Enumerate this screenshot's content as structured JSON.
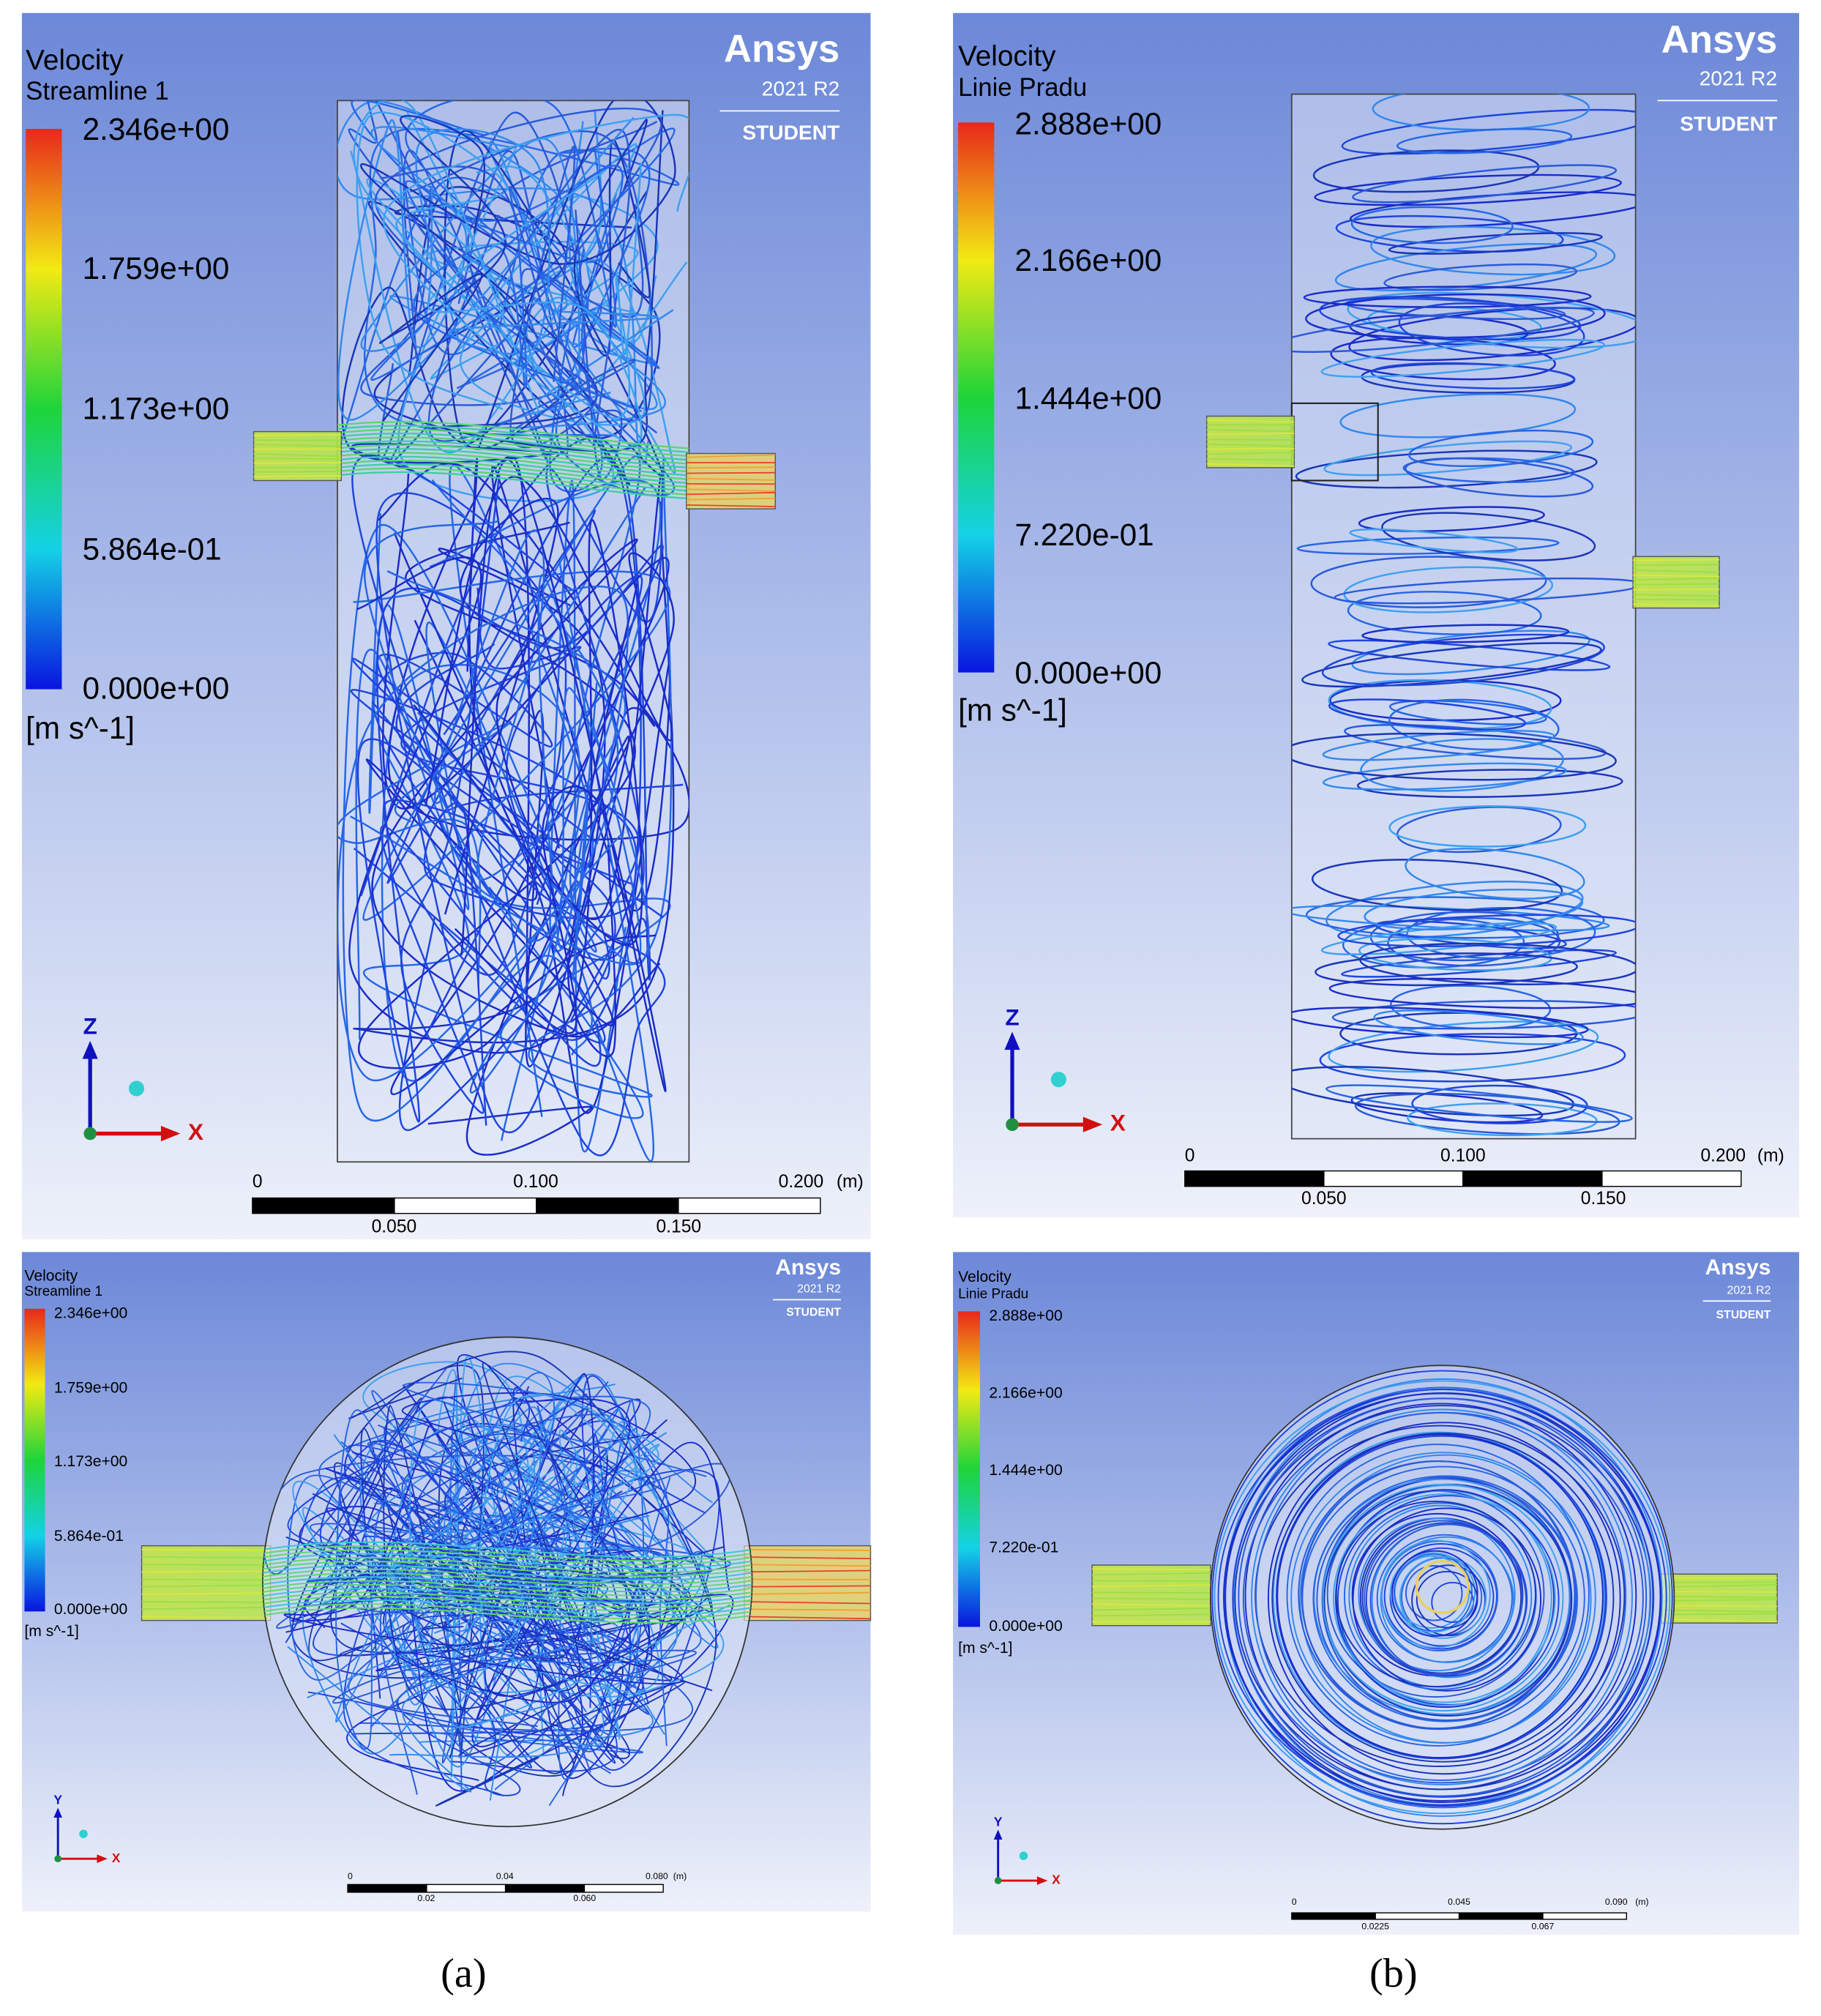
{
  "panels": [
    {
      "legend": {
        "title": "Velocity",
        "subtitle": "Streamline 1",
        "ticks": [
          "2.346e+00",
          "1.759e+00",
          "1.173e+00",
          "5.864e-01",
          "0.000e+00"
        ],
        "unit": "[m s^-1]"
      },
      "logo": {
        "brand": "Ansys",
        "version": "2021 R2",
        "edition": "STUDENT"
      },
      "axes": {
        "vertical": "Z",
        "horizontal": "X"
      },
      "scale": {
        "top": [
          "0",
          "0.100",
          "0.200"
        ],
        "unit": "(m)",
        "bottom": [
          "0.050",
          "0.150"
        ]
      }
    },
    {
      "legend": {
        "title": "Velocity",
        "subtitle": "Linie Pradu",
        "ticks": [
          "2.888e+00",
          "2.166e+00",
          "1.444e+00",
          "7.220e-01",
          "0.000e+00"
        ],
        "unit": "[m s^-1]"
      },
      "logo": {
        "brand": "Ansys",
        "version": "2021 R2",
        "edition": "STUDENT"
      },
      "axes": {
        "vertical": "Z",
        "horizontal": "X"
      },
      "scale": {
        "top": [
          "0",
          "0.100",
          "0.200"
        ],
        "unit": "(m)",
        "bottom": [
          "0.050",
          "0.150"
        ]
      }
    },
    {
      "legend": {
        "title": "Velocity",
        "subtitle": "Streamline 1",
        "ticks": [
          "2.346e+00",
          "1.759e+00",
          "1.173e+00",
          "5.864e-01",
          "0.000e+00"
        ],
        "unit": "[m s^-1]"
      },
      "logo": {
        "brand": "Ansys",
        "version": "2021 R2",
        "edition": "STUDENT"
      },
      "axes": {
        "vertical": "Y",
        "horizontal": "X"
      },
      "scale": {
        "top": [
          "0",
          "0.04",
          "0.080"
        ],
        "unit": "(m)",
        "bottom": [
          "0.02",
          "0.060"
        ]
      }
    },
    {
      "legend": {
        "title": "Velocity",
        "subtitle": "Linie Pradu",
        "ticks": [
          "2.888e+00",
          "2.166e+00",
          "1.444e+00",
          "7.220e-01",
          "0.000e+00"
        ],
        "unit": "[m s^-1]"
      },
      "logo": {
        "brand": "Ansys",
        "version": "2021 R2",
        "edition": "STUDENT"
      },
      "axes": {
        "vertical": "Y",
        "horizontal": "X"
      },
      "scale": {
        "top": [
          "0",
          "0.045",
          "0.090"
        ],
        "unit": "(m)",
        "bottom": [
          "0.0225",
          "0.067"
        ]
      }
    }
  ],
  "captions": [
    "(a)",
    "(b)"
  ]
}
